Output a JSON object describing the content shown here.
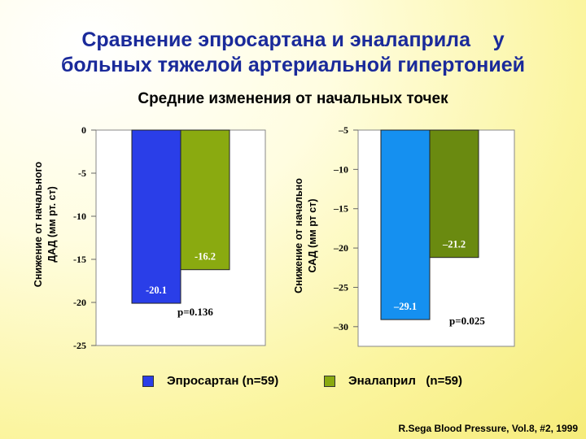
{
  "title_line1": "Сравнение эпросартана и эналаприла    у",
  "title_line2": "больных тяжелой артериальной гипертонией",
  "subtitle": "Средние изменения от начальных точек",
  "legend": {
    "series1": "Эпросартан (n=59)",
    "series2": "Эналаприл   (n=59)"
  },
  "colors": {
    "series1": "#2a3ee8",
    "series2": "#8aaa10",
    "series1_right": "#1590f0",
    "series2_right": "#6a8a10"
  },
  "source": "R.Sega Blood Pressure, Vol.8, #2, 1999",
  "chart_data": [
    {
      "type": "bar",
      "ylabel_line1": "Снижение от начального",
      "ylabel_line2": "ДАД (мм рт. ст)",
      "ylim": [
        -25,
        0
      ],
      "ticks": [
        "0",
        "-5",
        "-10",
        "-15",
        "-20",
        "-25"
      ],
      "tick_values": [
        0,
        -5,
        -10,
        -15,
        -20,
        -25
      ],
      "series": [
        {
          "name": "Эпросартан (n=59)",
          "values": [
            -20.1
          ],
          "label": "-20.1"
        },
        {
          "name": "Эналаприл   (n=59)",
          "values": [
            -16.2
          ],
          "label": "-16.2"
        }
      ],
      "annotation": "p=0.136"
    },
    {
      "type": "bar",
      "ylabel_line1": "Снижение от начально",
      "ylabel_line2": "САД (мм рт ст)",
      "ylim": [
        -32.5,
        -5
      ],
      "ticks": [
        "–5",
        "–10",
        "–15",
        "–20",
        "–25",
        "–30"
      ],
      "tick_values": [
        -5,
        -10,
        -15,
        -20,
        -25,
        -30
      ],
      "series": [
        {
          "name": "Эпросартан (n=59)",
          "values": [
            -29.1
          ],
          "label": "–29.1"
        },
        {
          "name": "Эналаприл   (n=59)",
          "values": [
            -21.2
          ],
          "label": "–21.2"
        }
      ],
      "annotation": "p=0.025"
    }
  ]
}
